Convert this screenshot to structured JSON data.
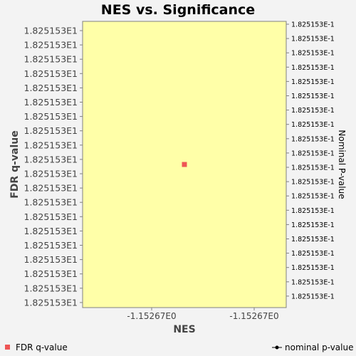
{
  "chart_data": {
    "type": "scatter",
    "title": "NES vs. Significance",
    "xlabel": "NES",
    "ylabel": "FDR q-value",
    "ylabel_right": "Nominal P-value",
    "x_tick_labels": [
      "-1.15267E0",
      "-1.15267E0"
    ],
    "y_tick_labels_left": [
      "1.825153E1",
      "1.825153E1",
      "1.825153E1",
      "1.825153E1",
      "1.825153E1",
      "1.825153E1",
      "1.825153E1",
      "1.825153E1",
      "1.825153E1",
      "1.825153E1",
      "1.825153E1",
      "1.825153E1",
      "1.825153E1",
      "1.825153E1",
      "1.825153E1",
      "1.825153E1",
      "1.825153E1",
      "1.825153E1",
      "1.825153E1",
      "1.825153E1"
    ],
    "y_tick_labels_right": [
      "1.825153E-1",
      "1.825153E-1",
      "1.825153E-1",
      "1.825153E-1",
      "1.825153E-1",
      "1.825153E-1",
      "1.825153E-1",
      "1.825153E-1",
      "1.825153E-1",
      "1.825153E-1",
      "1.825153E-1",
      "1.825153E-1",
      "1.825153E-1",
      "1.825153E-1",
      "1.825153E-1",
      "1.825153E-1",
      "1.825153E-1",
      "1.825153E-1",
      "1.825153E-1",
      "1.825153E-1"
    ],
    "series": [
      {
        "name": "FDR q-value",
        "marker": "square",
        "color": "#ee5555",
        "points": [
          {
            "x": -1.15267,
            "y": 18.25153
          }
        ]
      },
      {
        "name": "nominal p-value",
        "marker": "line-dot",
        "color": "#000000",
        "points": []
      }
    ],
    "x_range_fraction_of_point": 0.42,
    "plot_background": "#ffffa8",
    "grid": false,
    "legend_position": "bottom"
  }
}
